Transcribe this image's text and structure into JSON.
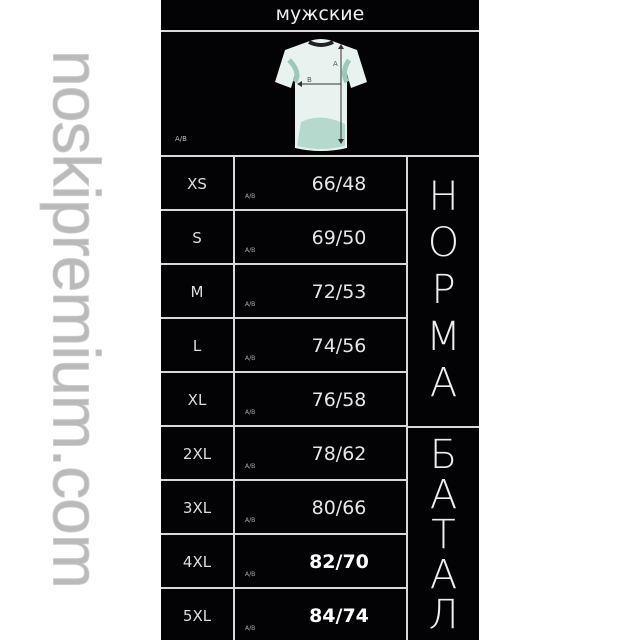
{
  "title": "мужские",
  "diagram": {
    "label_a": "A",
    "label_b": "B",
    "ab_label": "A/B"
  },
  "rows": [
    {
      "size": "XS",
      "value": "66/48",
      "ab": "A/B",
      "bold": false
    },
    {
      "size": "S",
      "value": "69/50",
      "ab": "A/B",
      "bold": false
    },
    {
      "size": "M",
      "value": "72/53",
      "ab": "A/B",
      "bold": false
    },
    {
      "size": "L",
      "value": "74/56",
      "ab": "A/B",
      "bold": false
    },
    {
      "size": "XL",
      "value": "76/58",
      "ab": "A/B",
      "bold": false
    },
    {
      "size": "2XL",
      "value": "78/62",
      "ab": "A/B",
      "bold": false
    },
    {
      "size": "3XL",
      "value": "80/66",
      "ab": "A/B",
      "bold": false
    },
    {
      "size": "4XL",
      "value": "82/70",
      "ab": "A/B",
      "bold": true
    },
    {
      "size": "5XL",
      "value": "84/74",
      "ab": "A/B",
      "bold": true
    }
  ],
  "groups": {
    "norma": [
      "Н",
      "О",
      "Р",
      "М",
      "А"
    ],
    "batal": [
      "Б",
      "А",
      "Т",
      "А",
      "Л"
    ]
  },
  "watermark": "noskipremium.com"
}
